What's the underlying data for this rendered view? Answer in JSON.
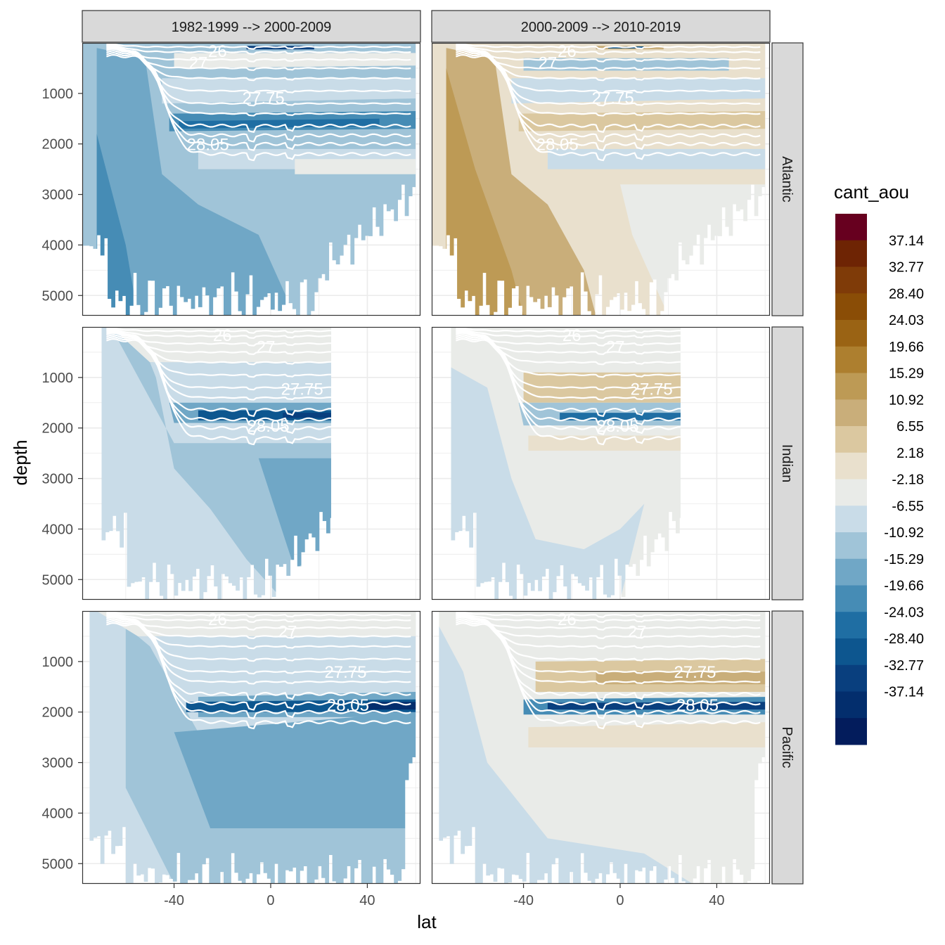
{
  "chart_data": {
    "type": "heatmap",
    "title": "",
    "xlabel": "lat",
    "ylabel": "depth",
    "xlim": [
      -78,
      62
    ],
    "ylim": [
      5400,
      0
    ],
    "x_ticks": [
      -40,
      0,
      40
    ],
    "y_ticks": [
      1000,
      2000,
      3000,
      4000,
      5000
    ],
    "column_facets": [
      "1982-1999 --> 2000-2009",
      "2000-2009 --> 2010-2019"
    ],
    "row_facets": [
      "Atlantic",
      "Indian",
      "Pacific"
    ],
    "grid": true,
    "fill_variable": "cant_aou",
    "legend": {
      "title": "cant_aou",
      "position": "right",
      "breaks": [
        "37.14",
        "32.77",
        "28.40",
        "24.03",
        "19.66",
        "15.29",
        "10.92",
        "6.55",
        "2.18",
        "-2.18",
        "-6.55",
        "-10.92",
        "-15.29",
        "-19.66",
        "-24.03",
        "-28.40",
        "-32.77",
        "-37.14"
      ],
      "colors": [
        "#67001f",
        "#6e2404",
        "#7f3b08",
        "#8a4d06",
        "#9a6314",
        "#ad7f2f",
        "#bd9a55",
        "#c9ae7a",
        "#dbc8a0",
        "#e9e0cd",
        "#e9ebe8",
        "#c9dce8",
        "#a0c4d8",
        "#70a7c6",
        "#468cb5",
        "#1f6ea3",
        "#0d568f",
        "#093f7e",
        "#032e6d",
        "#031c5c"
      ]
    },
    "isopycnals": [
      "26",
      "27",
      "27.75",
      "28.05"
    ],
    "panels": [
      {
        "ocean": "Atlantic",
        "period": "1982-1999 --> 2000-2009",
        "dominant": "-6.55 to -15.29 (negative)"
      },
      {
        "ocean": "Atlantic",
        "period": "2000-2009 --> 2010-2019",
        "dominant": "2.18 to 15.29 (positive)"
      },
      {
        "ocean": "Indian",
        "period": "1982-1999 --> 2000-2009",
        "dominant": "-2.18 to -28.40 (negative)"
      },
      {
        "ocean": "Indian",
        "period": "2000-2009 --> 2010-2019",
        "dominant": "-2.18 to 6.55, band near 28.05 -15.29"
      },
      {
        "ocean": "Pacific",
        "period": "1982-1999 --> 2000-2009",
        "dominant": "-2.18 to -32.77 (negative)"
      },
      {
        "ocean": "Pacific",
        "period": "2000-2009 --> 2010-2019",
        "dominant": "-2.18 to 6.55, band near 28.05 -28.40"
      }
    ]
  }
}
